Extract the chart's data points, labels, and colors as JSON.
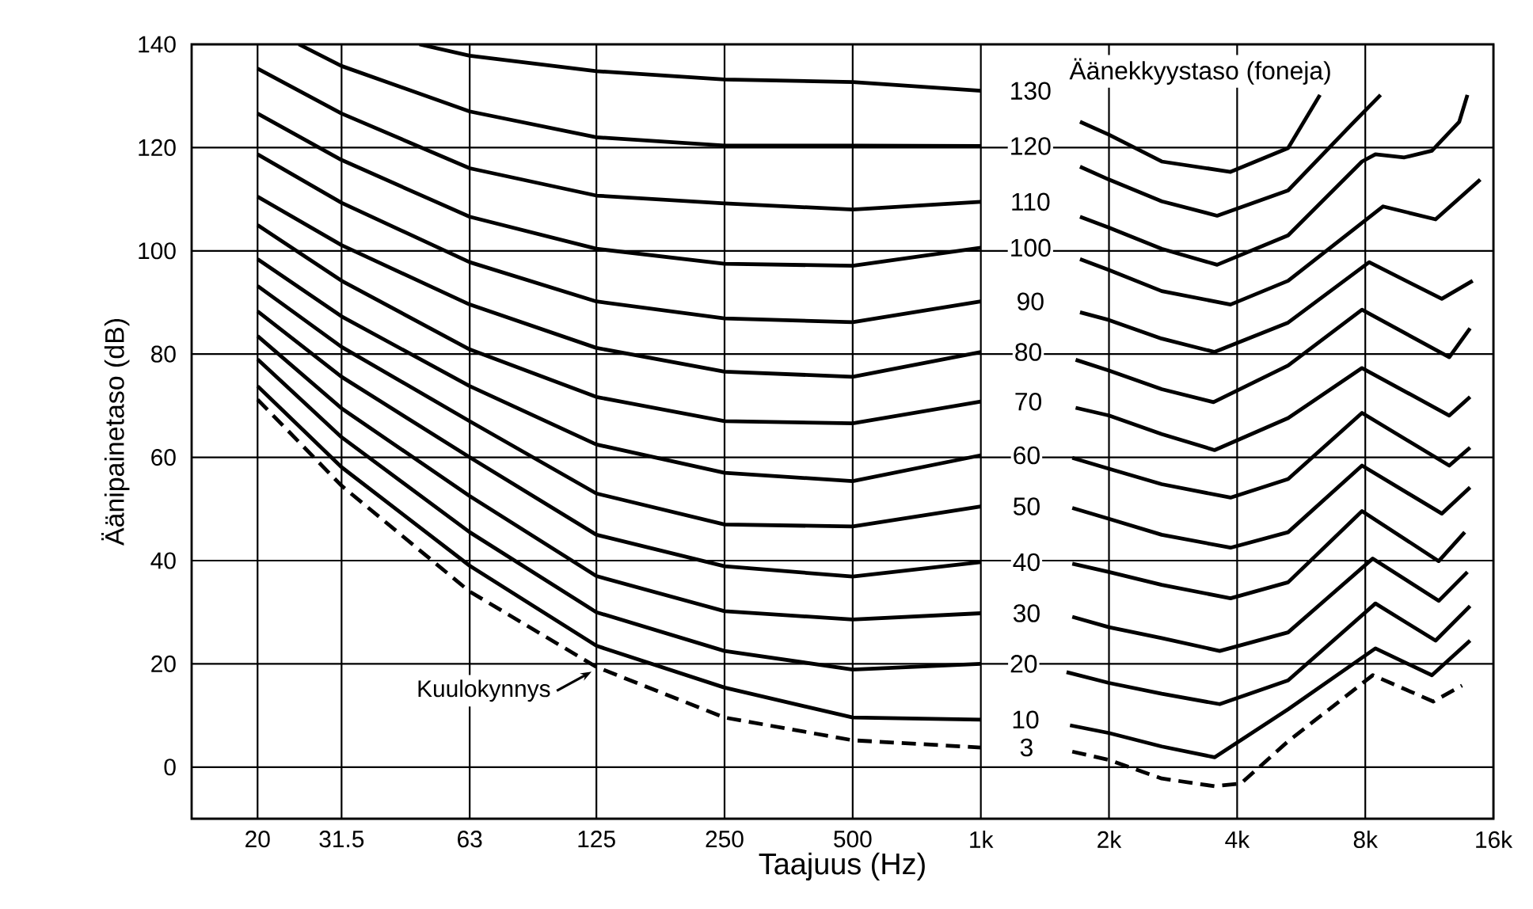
{
  "chart_data": {
    "type": "line",
    "xlabel": "Taajuus (Hz)",
    "ylabel": "Äänipainetaso (dB)",
    "legend_title": "Äänekkyystaso (foneja)",
    "log": "x",
    "grid": true,
    "xlim": [
      14,
      16000
    ],
    "ylim": [
      -10,
      140
    ],
    "xticks": [
      20,
      31.5,
      63,
      125,
      250,
      500,
      {
        "value": 1000,
        "label": "1k"
      },
      {
        "value": 2000,
        "label": "2k"
      },
      {
        "value": 4000,
        "label": "4k"
      },
      {
        "value": 8000,
        "label": "8k"
      },
      {
        "value": 16000,
        "label": "16k"
      }
    ],
    "yticks": [
      0,
      20,
      40,
      60,
      80,
      100,
      120,
      140
    ],
    "annotations": [
      {
        "text": "Kuulokynnys",
        "x": 125,
        "y": 19.4
      }
    ],
    "series": [
      {
        "name": "130",
        "color": "#000000",
        "line_style": "solid",
        "x": [
          48,
          63,
          125,
          250,
          500,
          1000,
          1300,
          1710,
          2000,
          2660,
          3860,
          5270,
          6260
        ],
        "values": [
          140,
          137.8,
          134.8,
          133.2,
          132.7,
          131,
          null,
          125,
          122.5,
          117.3,
          115.3,
          119.9,
          130.2
        ]
      },
      {
        "name": "120",
        "color": "#000000",
        "line_style": "solid",
        "x": [
          25,
          31.5,
          63,
          125,
          250,
          500,
          1000,
          1300,
          1710,
          2000,
          2660,
          3590,
          5270,
          7430,
          8690
        ],
        "values": [
          140,
          135.8,
          127,
          122,
          120.4,
          120.4,
          120.3,
          null,
          116.3,
          113.8,
          109.6,
          106.8,
          111.7,
          124.5,
          130.2
        ]
      },
      {
        "name": "110",
        "color": "#000000",
        "line_style": "solid",
        "x": [
          20,
          31.5,
          63,
          125,
          250,
          500,
          1000,
          1300,
          1710,
          2000,
          2660,
          3590,
          5270,
          7860,
          8450,
          9880,
          11470,
          13300,
          13900
        ],
        "values": [
          135.3,
          126.6,
          116,
          110.7,
          109.2,
          108,
          109.5,
          null,
          106.6,
          104.5,
          100.4,
          97.3,
          103,
          117.3,
          118.7,
          118.1,
          119.4,
          125,
          130.2
        ]
      },
      {
        "name": "100",
        "color": "#000000",
        "line_style": "solid",
        "x": [
          20,
          31.5,
          63,
          125,
          250,
          500,
          1000,
          1300,
          1710,
          2000,
          2660,
          3860,
          5270,
          8810,
          11700,
          14900
        ],
        "values": [
          126.6,
          117.6,
          106.6,
          100.4,
          97.5,
          97.1,
          100.6,
          null,
          98.4,
          96.3,
          92.2,
          89.6,
          94.2,
          108.6,
          106.1,
          113.8
        ]
      },
      {
        "name": "90",
        "color": "#000000",
        "line_style": "solid",
        "x": [
          20,
          31.5,
          63,
          125,
          250,
          500,
          1000,
          1300,
          1710,
          2000,
          2660,
          3540,
          5270,
          8170,
          12100,
          14300
        ],
        "values": [
          118.7,
          109.3,
          97.8,
          90.2,
          86.9,
          86.2,
          90.2,
          null,
          88.1,
          86.6,
          83,
          80.4,
          86.1,
          97.8,
          90.7,
          94.2
        ]
      },
      {
        "name": "80",
        "color": "#000000",
        "line_style": "solid",
        "x": [
          20,
          31.5,
          63,
          125,
          250,
          500,
          1000,
          1300,
          1670,
          2000,
          2660,
          3520,
          5270,
          7860,
          12600,
          14100
        ],
        "values": [
          110.5,
          101.1,
          89.6,
          81.2,
          76.6,
          75.6,
          80.4,
          null,
          78.9,
          76.8,
          73.2,
          70.7,
          77.8,
          88.6,
          79.4,
          85
        ]
      },
      {
        "name": "70",
        "color": "#000000",
        "line_style": "solid",
        "x": [
          20,
          31.5,
          63,
          125,
          250,
          500,
          1000,
          1300,
          1670,
          2000,
          2660,
          3540,
          5270,
          7860,
          12600,
          14100
        ],
        "values": [
          105,
          94.2,
          80.9,
          71.7,
          67,
          66.6,
          70.8,
          null,
          69.6,
          68.1,
          64.5,
          61.4,
          67.6,
          77.3,
          68.1,
          71.7
        ]
      },
      {
        "name": "60",
        "color": "#000000",
        "line_style": "solid",
        "x": [
          20,
          31.5,
          63,
          125,
          250,
          500,
          1000,
          1300,
          1640,
          2000,
          2660,
          3860,
          5270,
          7860,
          12600,
          14100
        ],
        "values": [
          98.4,
          87.3,
          73.8,
          62.5,
          57,
          55.4,
          60.4,
          null,
          59.9,
          57.8,
          54.8,
          52.2,
          55.8,
          68.6,
          58.4,
          61.9
        ]
      },
      {
        "name": "50",
        "color": "#000000",
        "line_style": "solid",
        "x": [
          20,
          31.5,
          63,
          125,
          250,
          500,
          1000,
          1300,
          1640,
          2000,
          2660,
          3860,
          5270,
          7860,
          12100,
          14100
        ],
        "values": [
          93.2,
          81.4,
          67,
          53,
          47,
          46.6,
          50.5,
          null,
          50.2,
          48.1,
          45,
          42.5,
          45.5,
          58.4,
          49.1,
          54.2
        ]
      },
      {
        "name": "40",
        "color": "#000000",
        "line_style": "solid",
        "x": [
          20,
          31.5,
          63,
          125,
          250,
          500,
          1000,
          1300,
          1640,
          2000,
          2660,
          3860,
          5270,
          7860,
          11900,
          13700
        ],
        "values": [
          88.3,
          75.6,
          60,
          45,
          38.9,
          36.9,
          39.7,
          null,
          39.4,
          37.8,
          35.3,
          32.7,
          35.8,
          49.6,
          39.9,
          45.5
        ]
      },
      {
        "name": "30",
        "color": "#000000",
        "line_style": "solid",
        "x": [
          20,
          31.5,
          63,
          125,
          250,
          500,
          1000,
          1300,
          1640,
          2000,
          2660,
          3640,
          5270,
          8330,
          11900,
          13900
        ],
        "values": [
          83.5,
          69.5,
          52.5,
          37,
          30.2,
          28.6,
          29.8,
          null,
          29.1,
          27.1,
          25,
          22.5,
          26.1,
          40.4,
          32.2,
          37.8
        ]
      },
      {
        "name": "20",
        "color": "#000000",
        "line_style": "solid",
        "x": [
          20,
          31.5,
          63,
          125,
          250,
          500,
          1000,
          1300,
          1590,
          2000,
          2660,
          3640,
          5270,
          8450,
          11700,
          14100
        ],
        "values": [
          79,
          63.9,
          45.5,
          30,
          22.5,
          18.9,
          20,
          null,
          18.4,
          16.3,
          14.2,
          12.2,
          16.8,
          31.7,
          24.5,
          31.2
        ]
      },
      {
        "name": "10",
        "color": "#000000",
        "line_style": "solid",
        "x": [
          20,
          31.5,
          63,
          125,
          250,
          500,
          1000,
          1300,
          1620,
          2000,
          2660,
          3540,
          5270,
          8450,
          11470,
          14100
        ],
        "values": [
          73.8,
          58.1,
          39,
          23.5,
          15.4,
          9.6,
          9.2,
          null,
          8.1,
          6.6,
          4,
          1.9,
          11.2,
          23,
          17.8,
          24.5
        ]
      },
      {
        "name": "3",
        "color": "#000000",
        "line_style": "dashed",
        "x": [
          20,
          31.5,
          63,
          125,
          250,
          500,
          1000,
          1300,
          1640,
          2000,
          2660,
          3540,
          4080,
          5270,
          8330,
          11560,
          13500
        ],
        "values": [
          71.2,
          54.5,
          34,
          19.4,
          9.6,
          5.2,
          3.8,
          null,
          3,
          1.4,
          -2.2,
          -3.7,
          -3.2,
          5,
          17.8,
          12.7,
          15.8
        ]
      }
    ]
  }
}
